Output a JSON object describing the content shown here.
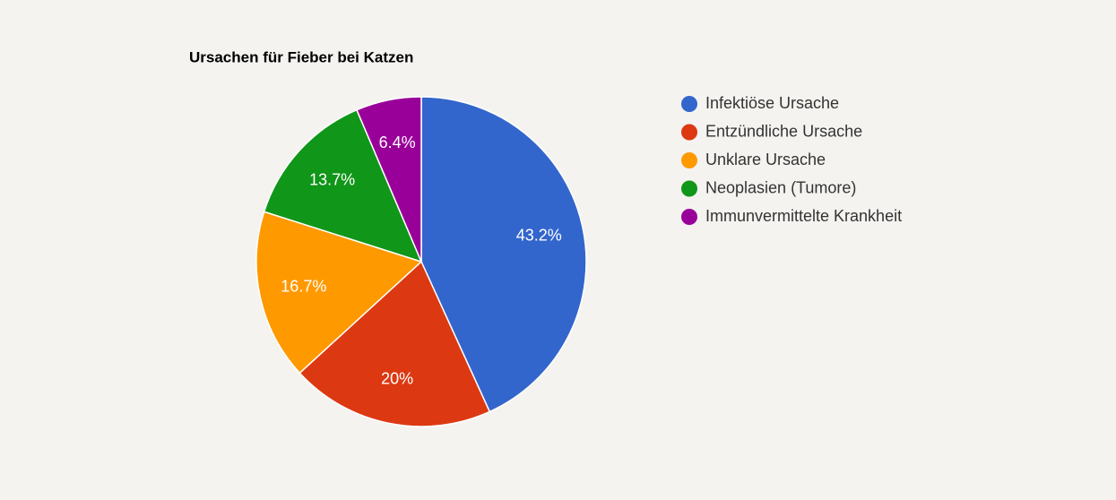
{
  "chart_data": {
    "type": "pie",
    "title": "Ursachen für Fieber bei Katzen",
    "categories": [
      "Infektiöse Ursache",
      "Entzündliche Ursache",
      "Unklare Ursache",
      "Neoplasien (Tumore)",
      "Immunvermittelte Krankheit"
    ],
    "values": [
      43.2,
      20,
      16.7,
      13.7,
      6.4
    ],
    "value_labels": [
      "43.2%",
      "20%",
      "16.7%",
      "13.7%",
      "6.4%"
    ],
    "colors": [
      "#3366cc",
      "#dc3912",
      "#ff9900",
      "#109618",
      "#990099"
    ],
    "legend": "right"
  }
}
